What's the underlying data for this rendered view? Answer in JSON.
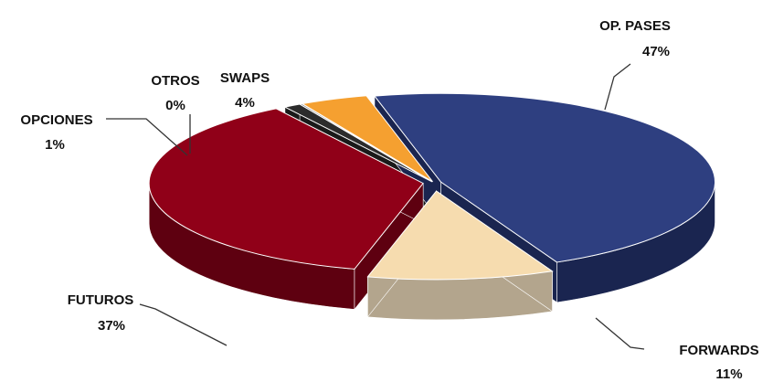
{
  "chart_data": {
    "type": "pie",
    "style": "3d-exploded",
    "title": "",
    "slices": [
      {
        "name": "OP. PASES",
        "percent_label": "47%",
        "value": 47,
        "color": "#2e3f80",
        "side_color": "#1a2550"
      },
      {
        "name": "FORWARDS",
        "percent_label": "11%",
        "value": 11,
        "color": "#f6dcaf",
        "side_color": "#b3a58d"
      },
      {
        "name": "FUTUROS",
        "percent_label": "37%",
        "value": 37,
        "color": "#900018",
        "side_color": "#5e0010"
      },
      {
        "name": "OPCIONES",
        "percent_label": "1%",
        "value": 1,
        "color": "#2c2c2c",
        "side_color": "#1a1a1a"
      },
      {
        "name": "OTROS",
        "percent_label": "0%",
        "value": 0,
        "color": "#6a6a6a",
        "side_color": "#444444"
      },
      {
        "name": "SWAPS",
        "percent_label": "4%",
        "value": 4,
        "color": "#f5a030",
        "side_color": "#b06f1a"
      }
    ]
  }
}
